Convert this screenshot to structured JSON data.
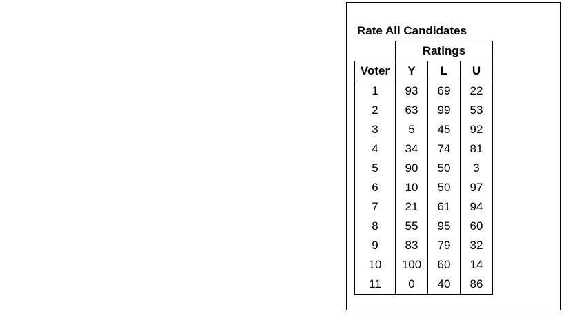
{
  "title": "Rate All Candidates",
  "group_header": "Ratings",
  "columns": [
    "Voter",
    "Y",
    "L",
    "U"
  ],
  "rows": [
    [
      "1",
      "93",
      "69",
      "22"
    ],
    [
      "2",
      "63",
      "99",
      "53"
    ],
    [
      "3",
      "5",
      "45",
      "92"
    ],
    [
      "4",
      "34",
      "74",
      "81"
    ],
    [
      "5",
      "90",
      "50",
      "3"
    ],
    [
      "6",
      "10",
      "50",
      "97"
    ],
    [
      "7",
      "21",
      "61",
      "94"
    ],
    [
      "8",
      "55",
      "95",
      "60"
    ],
    [
      "9",
      "83",
      "79",
      "32"
    ],
    [
      "10",
      "100",
      "60",
      "14"
    ],
    [
      "11",
      "0",
      "40",
      "86"
    ]
  ]
}
